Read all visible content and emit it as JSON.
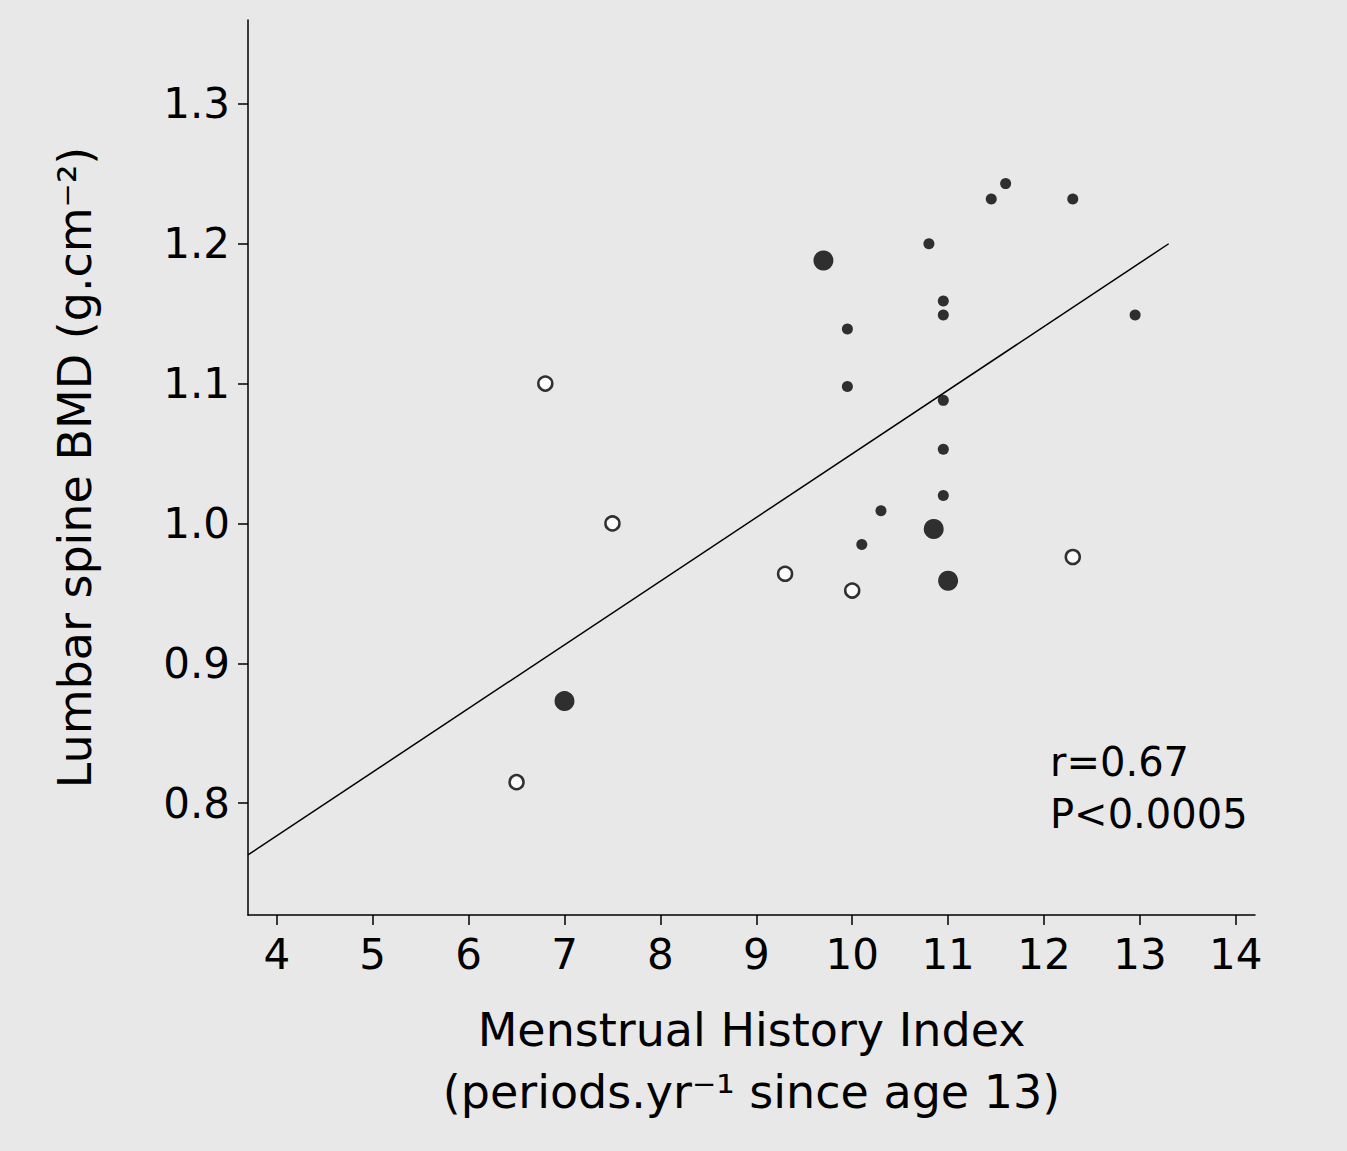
{
  "chart_data": {
    "type": "scatter",
    "x_label": "Menstrual History Index\n(periods.yr⁻¹ since age 13)",
    "y_label": "Lumbar spine BMD (g.cm⁻²)",
    "xlim": [
      3.7,
      14.2
    ],
    "xticks": [
      4,
      5,
      6,
      7,
      8,
      9,
      10,
      11,
      12,
      13,
      14
    ],
    "ylim": [
      0.72,
      1.36
    ],
    "yticks": [
      0.8,
      0.9,
      {
        "value": 1,
        "label": "1.0"
      },
      1.1,
      1.2,
      1.3
    ],
    "grid": false,
    "annotations": [
      "r=0.67",
      "P<0.0005"
    ],
    "series": [
      {
        "type": "scatter",
        "marker": "open_circle",
        "color": "#000000",
        "x": [
          6.8,
          7.5,
          9.3,
          10.0,
          12.3,
          6.5
        ],
        "values": [
          1.1,
          1.0,
          0.964,
          0.952,
          0.976,
          0.815
        ]
      },
      {
        "type": "scatter",
        "marker": "large_filled_circle",
        "color": "#000000",
        "x": [
          9.7,
          7.0,
          10.85,
          11.0
        ],
        "values": [
          1.188,
          0.873,
          0.996,
          0.959
        ]
      },
      {
        "type": "scatter",
        "marker": "filled_circle",
        "color": "#000000",
        "x": [
          11.6,
          11.45,
          12.3,
          10.8,
          10.95,
          10.95,
          9.95,
          12.95,
          9.95,
          10.95,
          10.95,
          10.95,
          10.3,
          10.1
        ],
        "values": [
          1.243,
          1.232,
          1.232,
          1.2,
          1.159,
          1.149,
          1.139,
          1.149,
          1.098,
          1.088,
          1.053,
          1.02,
          1.009,
          0.985
        ]
      },
      {
        "type": "line",
        "line_style": "solid",
        "color": "#000000",
        "x": [
          3.7,
          13.3
        ],
        "values": [
          0.763,
          1.2
        ]
      }
    ]
  }
}
